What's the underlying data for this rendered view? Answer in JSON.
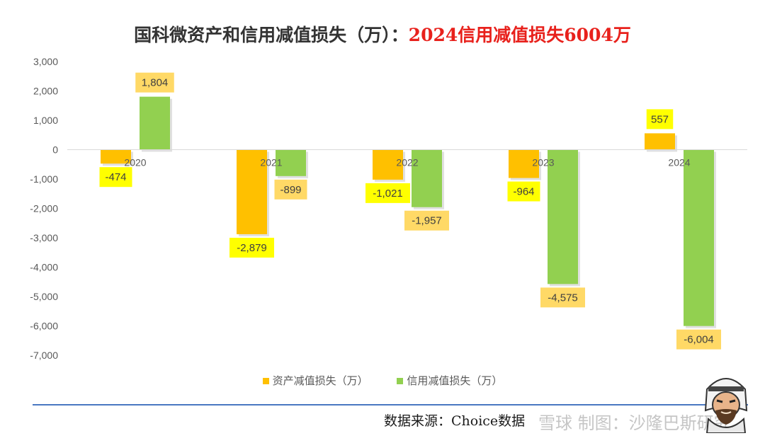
{
  "title": {
    "main": "国科微资产和信用减值损失（万）：",
    "highlight": "2024信用减值损失6004万",
    "highlight_color": "#e8211c"
  },
  "chart_data": {
    "type": "bar",
    "categories": [
      "2020",
      "2021",
      "2022",
      "2023",
      "2024"
    ],
    "series": [
      {
        "name": "资产减值损失（万）",
        "values": [
          -474,
          -2879,
          -1021,
          -964,
          557
        ],
        "color": "#ffc000",
        "label_bg": "#ffff00",
        "labels": [
          "-474",
          "-2,879",
          "-1,021",
          "-964",
          "557"
        ]
      },
      {
        "name": "信用减值损失（万）",
        "values": [
          1804,
          -899,
          -1957,
          -4575,
          -6004
        ],
        "color": "#92d050",
        "label_bg": "#ffd966",
        "labels": [
          "1,804",
          "-899",
          "-1,957",
          "-4,575",
          "-6,004"
        ]
      }
    ],
    "ylim": [
      -7000,
      3000
    ],
    "yticks": [
      3000,
      2000,
      1000,
      0,
      -1000,
      -2000,
      -3000,
      -4000,
      -5000,
      -6000,
      -7000
    ],
    "ytick_labels": [
      "3,000",
      "2,000",
      "1,000",
      "0",
      "-1,000",
      "-2,000",
      "-3,000",
      "-4,000",
      "-5,000",
      "-6,000",
      "-7,000"
    ],
    "grid": false,
    "legend_position": "bottom"
  },
  "footer": {
    "source": "数据来源：Choice数据",
    "watermark": "雪球  制图：沙隆巴斯研究"
  }
}
